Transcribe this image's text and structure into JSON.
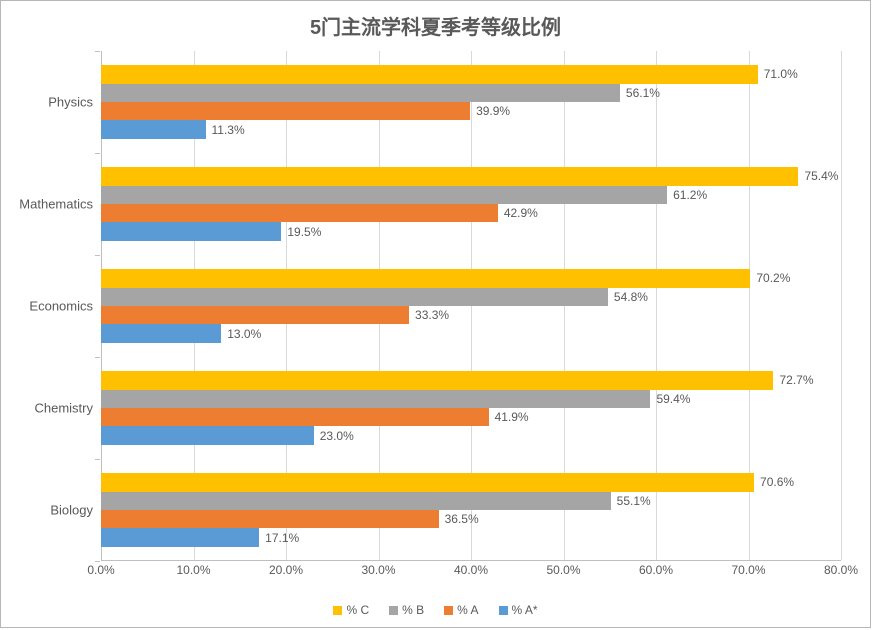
{
  "chart": {
    "type": "bar-horizontal-grouped",
    "title": "5门主流学科夏季考等级比例",
    "title_fontsize": 20,
    "title_color": "#595959",
    "background_color": "#ffffff",
    "border_color": "#b7b7b7",
    "grid_color": "#d9d9d9",
    "axis_color": "#bfbfbf",
    "text_color": "#595959",
    "label_fontsize": 12,
    "xlim": [
      0,
      80
    ],
    "xtick_step": 10,
    "xtick_format_suffix": "%",
    "xtick_decimals": 1,
    "bar_rel_height": 0.18,
    "group_gap_rel": 0.28,
    "categories": [
      "Biology",
      "Chemistry",
      "Economics",
      "Mathematics",
      "Physics"
    ],
    "series": [
      {
        "name": "% C",
        "color": "#ffc000",
        "values": [
          70.6,
          72.7,
          70.2,
          75.4,
          71.0
        ]
      },
      {
        "name": "% B",
        "color": "#a5a5a5",
        "values": [
          55.1,
          59.4,
          54.8,
          61.2,
          56.1
        ]
      },
      {
        "name": "% A",
        "color": "#ed7d31",
        "values": [
          36.5,
          41.9,
          33.3,
          42.9,
          39.9
        ]
      },
      {
        "name": "% A*",
        "color": "#5b9bd5",
        "values": [
          17.1,
          23.0,
          13.0,
          19.5,
          11.3
        ]
      }
    ],
    "value_label_decimals": 1,
    "value_label_suffix": "%"
  }
}
